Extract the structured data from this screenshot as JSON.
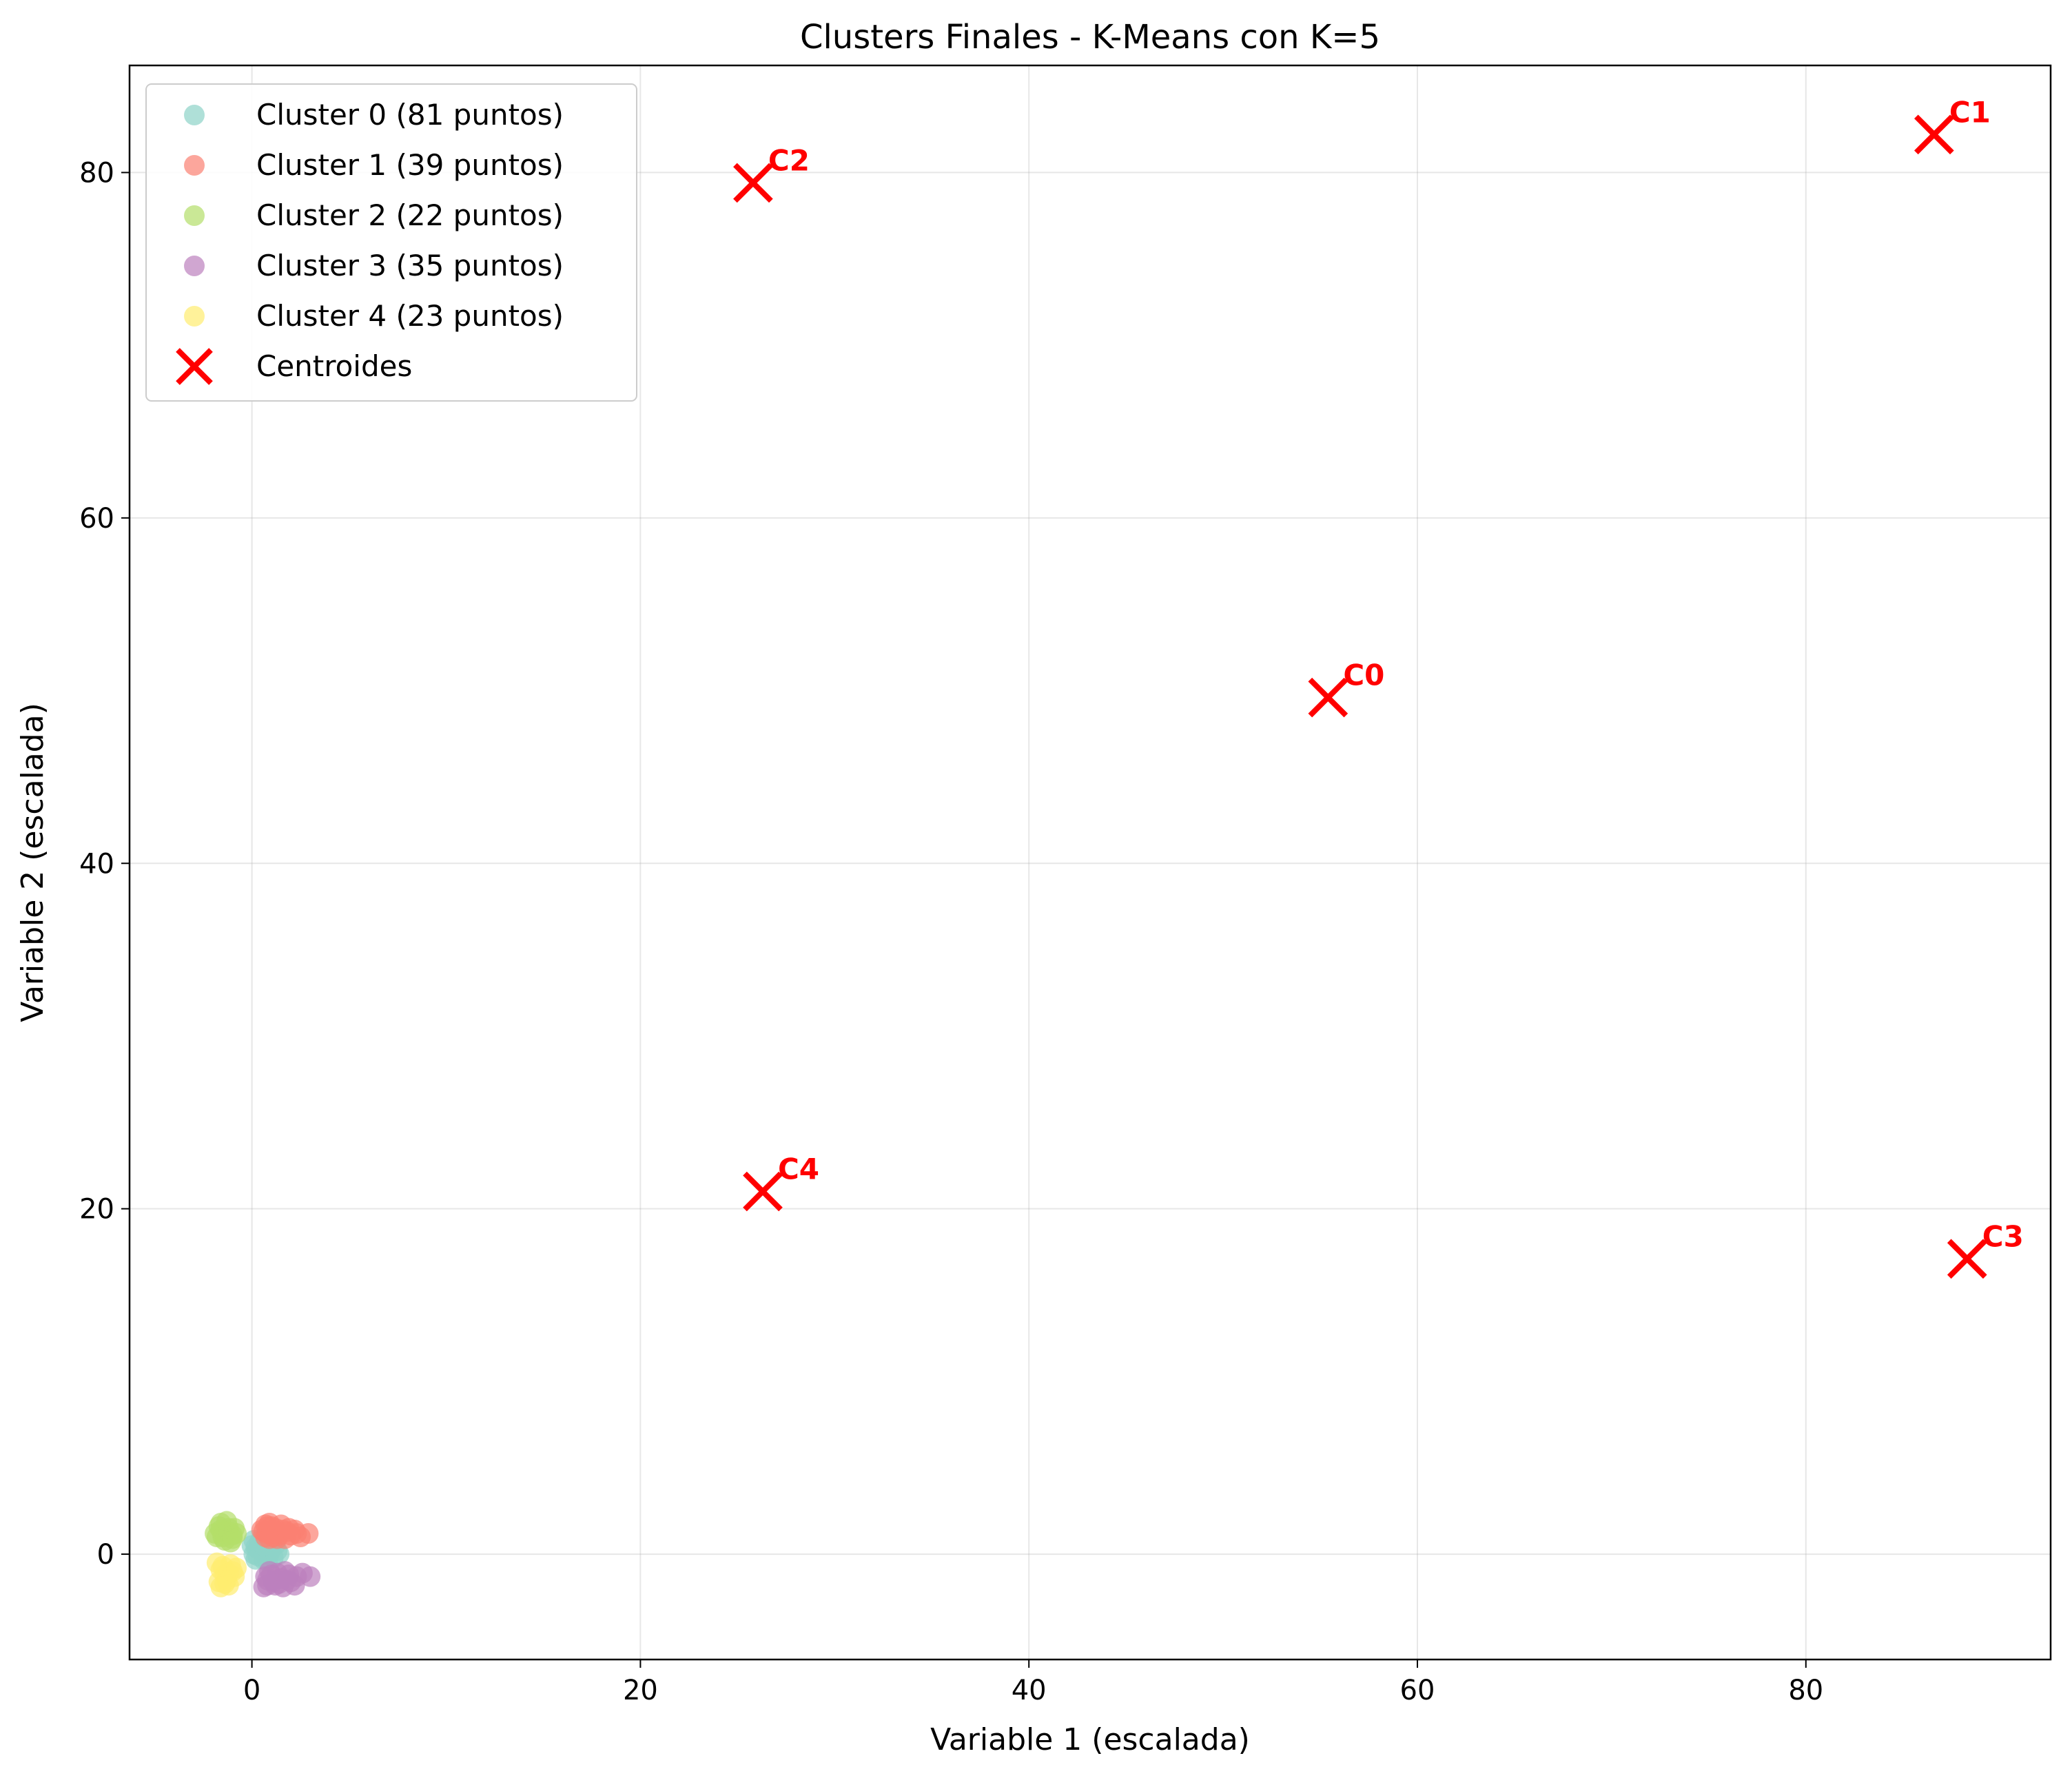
{
  "chart_data": {
    "type": "scatter",
    "title": "Clusters Finales - K-Means con K=5",
    "xlabel": "Variable 1 (escalada)",
    "ylabel": "Variable 2 (escalada)",
    "xlim": [
      -6.3,
      92.6
    ],
    "ylim": [
      -6.1,
      86.2
    ],
    "x_ticks": [
      0,
      20,
      40,
      60,
      80
    ],
    "y_ticks": [
      0,
      20,
      40,
      60,
      80
    ],
    "grid": true,
    "legend_position": "top-left",
    "series": [
      {
        "name": "Cluster 0 (81 puntos)",
        "color": "#8dd3c7",
        "points": [
          [
            0.2,
            0.4
          ],
          [
            0.5,
            0.2
          ],
          [
            0.8,
            0.6
          ],
          [
            0.3,
            -0.1
          ],
          [
            1.0,
            0.3
          ],
          [
            0.6,
            -0.3
          ],
          [
            0.1,
            0.0
          ],
          [
            0.9,
            0.0
          ],
          [
            1.2,
            0.5
          ],
          [
            0.4,
            0.7
          ],
          [
            0.7,
            0.1
          ],
          [
            0.0,
            0.5
          ],
          [
            1.1,
            -0.2
          ],
          [
            0.5,
            0.9
          ],
          [
            0.3,
            0.3
          ],
          [
            0.8,
            -0.4
          ],
          [
            1.3,
            0.2
          ],
          [
            0.2,
            -0.3
          ],
          [
            0.6,
            0.5
          ],
          [
            0.9,
            0.8
          ],
          [
            1.4,
            0.0
          ],
          [
            0.1,
            0.8
          ]
        ]
      },
      {
        "name": "Cluster 1 (39 puntos)",
        "color": "#fb8072",
        "points": [
          [
            0.5,
            1.4
          ],
          [
            0.8,
            1.6
          ],
          [
            1.0,
            1.2
          ],
          [
            1.2,
            1.5
          ],
          [
            0.7,
            1.0
          ],
          [
            1.5,
            1.7
          ],
          [
            1.8,
            1.3
          ],
          [
            2.0,
            1.1
          ],
          [
            2.2,
            1.4
          ],
          [
            0.9,
            1.8
          ],
          [
            1.3,
            0.9
          ],
          [
            2.5,
            1.0
          ],
          [
            2.9,
            1.2
          ],
          [
            0.6,
            1.3
          ],
          [
            1.1,
            1.0
          ],
          [
            1.6,
            1.4
          ],
          [
            0.8,
            1.2
          ],
          [
            1.4,
            1.1
          ],
          [
            1.9,
            1.5
          ],
          [
            1.0,
            1.6
          ],
          [
            0.7,
            1.7
          ],
          [
            1.7,
            0.9
          ],
          [
            2.3,
            1.2
          ],
          [
            0.9,
            0.9
          ]
        ]
      },
      {
        "name": "Cluster 2 (22 puntos)",
        "color": "#b3de69",
        "points": [
          [
            -1.8,
            1.0
          ],
          [
            -1.5,
            1.3
          ],
          [
            -1.6,
            1.8
          ],
          [
            -1.2,
            1.5
          ],
          [
            -1.9,
            1.2
          ],
          [
            -1.4,
            0.8
          ],
          [
            -1.0,
            1.1
          ],
          [
            -1.7,
            1.6
          ],
          [
            -1.3,
            1.9
          ],
          [
            -0.8,
            1.2
          ],
          [
            -1.1,
            0.7
          ],
          [
            -1.5,
            1.0
          ],
          [
            -1.2,
            1.3
          ],
          [
            -0.9,
            1.5
          ],
          [
            -1.6,
            1.4
          ],
          [
            -1.0,
            0.9
          ]
        ]
      },
      {
        "name": "Cluster 3 (35 puntos)",
        "color": "#bc80bd",
        "points": [
          [
            0.8,
            -1.5
          ],
          [
            1.0,
            -1.2
          ],
          [
            1.2,
            -1.8
          ],
          [
            0.6,
            -1.9
          ],
          [
            1.5,
            -1.4
          ],
          [
            1.7,
            -1.0
          ],
          [
            2.0,
            -1.6
          ],
          [
            2.3,
            -1.3
          ],
          [
            2.6,
            -1.1
          ],
          [
            3.0,
            -1.3
          ],
          [
            1.4,
            -1.7
          ],
          [
            0.9,
            -1.0
          ],
          [
            1.1,
            -1.6
          ],
          [
            1.8,
            -1.5
          ],
          [
            0.7,
            -1.3
          ],
          [
            1.6,
            -1.9
          ],
          [
            2.2,
            -1.8
          ],
          [
            1.3,
            -1.1
          ],
          [
            0.8,
            -1.8
          ],
          [
            1.9,
            -1.2
          ]
        ]
      },
      {
        "name": "Cluster 4 (23 puntos)",
        "color": "#ffed6f",
        "points": [
          [
            -1.8,
            -0.5
          ],
          [
            -1.6,
            -0.9
          ],
          [
            -1.4,
            -1.2
          ],
          [
            -1.7,
            -1.6
          ],
          [
            -1.2,
            -1.8
          ],
          [
            -1.0,
            -1.0
          ],
          [
            -1.5,
            -0.7
          ],
          [
            -1.3,
            -1.5
          ],
          [
            -0.9,
            -1.3
          ],
          [
            -1.6,
            -1.9
          ],
          [
            -1.1,
            -0.6
          ],
          [
            -1.4,
            -1.7
          ],
          [
            -0.8,
            -0.8
          ],
          [
            -1.2,
            -1.1
          ]
        ]
      }
    ],
    "centroids": {
      "name": "Centroides",
      "color": "#ff0000",
      "points": [
        {
          "label": "C0",
          "x": 55.4,
          "y": 49.6
        },
        {
          "label": "C1",
          "x": 86.6,
          "y": 82.2
        },
        {
          "label": "C2",
          "x": 25.8,
          "y": 79.4
        },
        {
          "label": "C3",
          "x": 88.3,
          "y": 17.1
        },
        {
          "label": "C4",
          "x": 26.3,
          "y": 21.0
        }
      ]
    }
  }
}
